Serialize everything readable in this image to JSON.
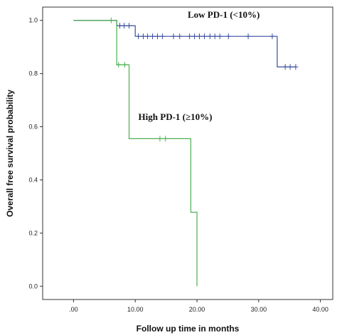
{
  "chart_data": {
    "type": "line",
    "title": "",
    "xlabel": "Follow up time in months",
    "ylabel": "Overall free survival probability",
    "xlim": [
      -5,
      42
    ],
    "ylim": [
      -0.05,
      1.05
    ],
    "xticks": [
      0,
      10,
      20,
      30,
      40
    ],
    "xtick_labels": [
      ".00",
      "10.00",
      "20.00",
      "30.00",
      "40.00"
    ],
    "yticks": [
      0,
      0.2,
      0.4,
      0.6,
      0.8,
      1.0
    ],
    "ytick_labels": [
      "0.0",
      "0.2",
      "0.4",
      "0.6",
      "0.8",
      "1.0"
    ],
    "grid": false,
    "series": [
      {
        "name": "Low PD-1 (<10%)",
        "color": "#3b4ea0",
        "x": [
          0,
          7,
          10,
          33,
          36
        ],
        "y": [
          1.0,
          0.98,
          0.94,
          0.825,
          0.825
        ],
        "censored_x": [
          7.5,
          8.2,
          9.0,
          10.5,
          11.3,
          12.0,
          12.8,
          13.6,
          14.4,
          16.2,
          17.2,
          18.8,
          19.6,
          20.4,
          21.2,
          22.1,
          22.9,
          23.7,
          25.1,
          28.3,
          32.2,
          34.3,
          35.1,
          36.0
        ],
        "censored_y": [
          0.98,
          0.98,
          0.98,
          0.94,
          0.94,
          0.94,
          0.94,
          0.94,
          0.94,
          0.94,
          0.94,
          0.94,
          0.94,
          0.94,
          0.94,
          0.94,
          0.94,
          0.94,
          0.94,
          0.94,
          0.94,
          0.825,
          0.825,
          0.825
        ]
      },
      {
        "name": "High PD-1 (≥10%)",
        "color": "#4caf50",
        "x": [
          0,
          7,
          9,
          19,
          20
        ],
        "y": [
          1.0,
          0.833,
          0.555,
          0.278,
          0.0
        ],
        "censored_x": [
          6.1,
          7.3,
          8.3,
          14.0,
          14.9
        ],
        "censored_y": [
          1.0,
          0.833,
          0.833,
          0.555,
          0.555
        ]
      }
    ],
    "annotations": [
      {
        "text": "Low PD-1 (<10%)",
        "x": 18.5,
        "y": 1.01
      },
      {
        "text": "High PD-1 (≥10%)",
        "x": 10.5,
        "y": 0.625
      }
    ]
  }
}
